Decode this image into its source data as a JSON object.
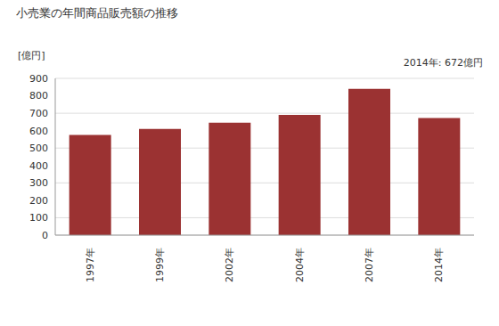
{
  "chart_data": {
    "type": "bar",
    "title": "小売業の年間商品販売額の推移",
    "y_label": "[億円]",
    "annotation": "2014年: 672億円",
    "categories": [
      "1997年",
      "1999年",
      "2002年",
      "2004年",
      "2007年",
      "2014年"
    ],
    "values": [
      575,
      610,
      645,
      690,
      840,
      672
    ],
    "color": "#9b3232",
    "ylim": [
      0,
      900
    ],
    "yticks": [
      0,
      100,
      200,
      300,
      400,
      500,
      600,
      700,
      800,
      900
    ],
    "grid": true
  }
}
